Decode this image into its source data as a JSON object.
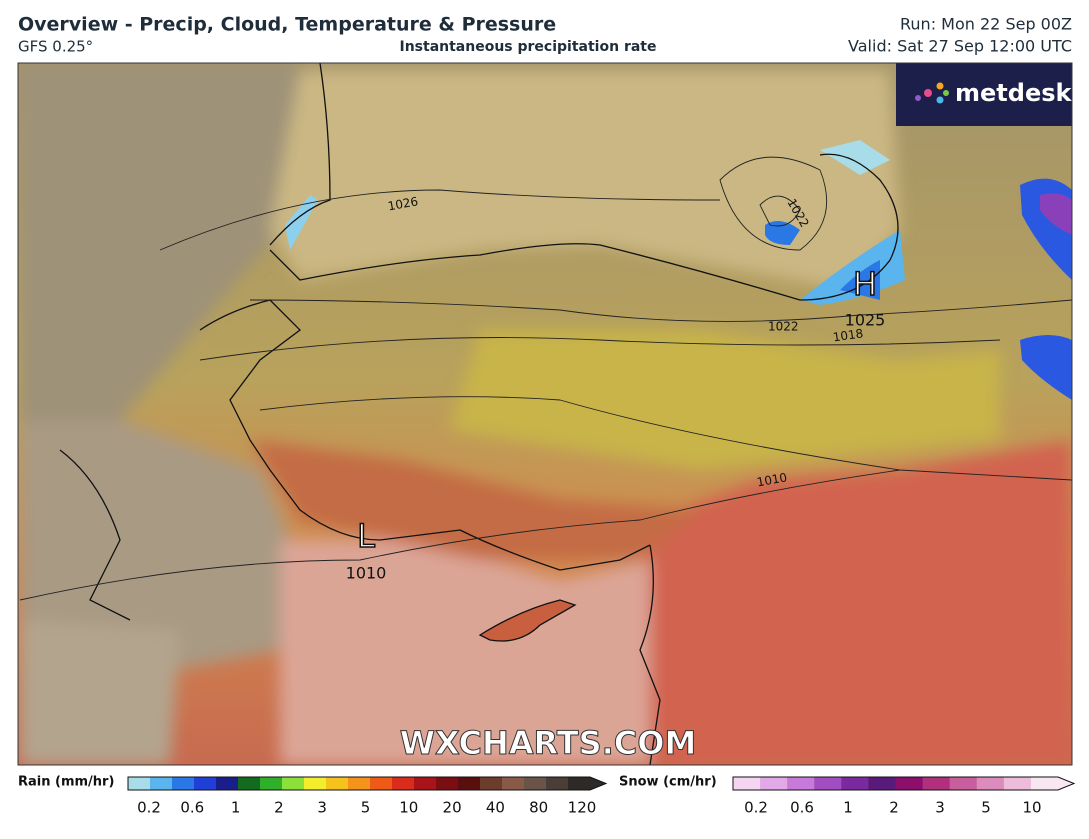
{
  "header": {
    "title": "Overview - Precip, Cloud, Temperature & Pressure",
    "model": "GFS 0.25°",
    "subtitle": "Instantaneous precipitation rate",
    "run": "Run: Mon 22 Sep 00Z",
    "valid": "Valid: Sat 27 Sep 12:00 UTC"
  },
  "map": {
    "isobar_labels": [
      "1026",
      "1022",
      "1022",
      "1018",
      "1010"
    ],
    "pressure_centers": [
      {
        "symbol": "H",
        "value": "1025"
      },
      {
        "symbol": "L",
        "value": "1010"
      }
    ],
    "watermark": "WXCHARTS.COM",
    "logo": "metdesk"
  },
  "legend": {
    "rain": {
      "title": "Rain (mm/hr)",
      "ticks": [
        0.2,
        0.6,
        1,
        2,
        3,
        5,
        10,
        20,
        40,
        80,
        120
      ],
      "colors": [
        "#a8dce8",
        "#5ab4ee",
        "#2a78e6",
        "#1f3fd6",
        "#1a1e8a",
        "#126b1e",
        "#2fb02a",
        "#8ce03a",
        "#f2ee2a",
        "#f5c21e",
        "#f59418",
        "#ef5a18",
        "#d92c1a",
        "#a8141a",
        "#7a0e12",
        "#5a0e0e",
        "#6e3c2c",
        "#8a5a48",
        "#6a5448",
        "#4a3e38",
        "#2e2a28"
      ]
    },
    "snow": {
      "title": "Snow (cm/hr)",
      "ticks": [
        0.2,
        0.6,
        1,
        2,
        3,
        5,
        10
      ],
      "colors": [
        "#f5d6f2",
        "#e3a8e8",
        "#c87ad8",
        "#a24ec0",
        "#7a2a9e",
        "#5a1a7a",
        "#8a0e6a",
        "#b0307e",
        "#c85e9e",
        "#dc8cbc",
        "#ecbcd8",
        "#f8e6f0"
      ]
    }
  }
}
